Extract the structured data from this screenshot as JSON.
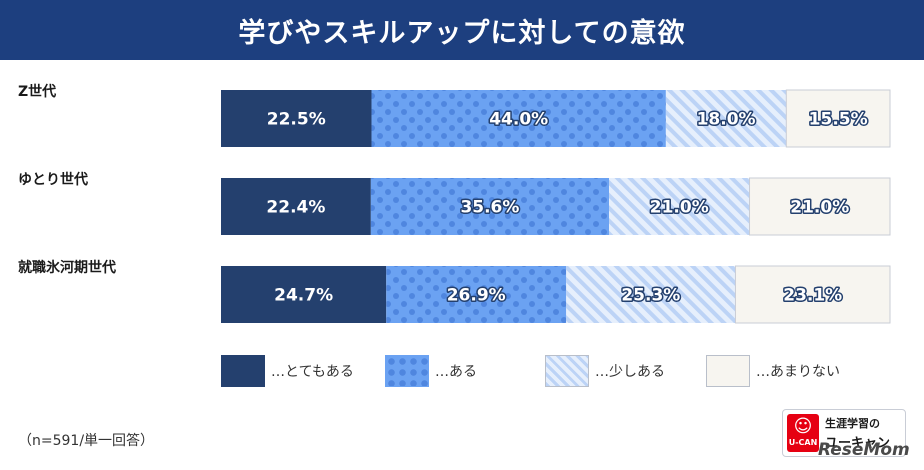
{
  "title": "学びやスキルアップに対しての意欲",
  "chart_data": {
    "type": "bar",
    "orientation": "horizontal",
    "stacked": true,
    "percent_stacked": true,
    "categories": [
      "Z世代",
      "ゆとり世代",
      "就職氷河期世代"
    ],
    "series": [
      {
        "name": "…とてもある",
        "values": [
          22.5,
          22.4,
          24.7
        ],
        "labels": [
          "22.5%",
          "22.4%",
          "24.7%"
        ]
      },
      {
        "name": "…ある",
        "values": [
          44.0,
          35.6,
          26.9
        ],
        "labels": [
          "44.0%",
          "35.6%",
          "26.9%"
        ]
      },
      {
        "name": "…少しある",
        "values": [
          18.0,
          21.0,
          25.3
        ],
        "labels": [
          "18.0%",
          "21.0%",
          "25.3%"
        ]
      },
      {
        "name": "…あまりない",
        "values": [
          15.5,
          21.0,
          23.1
        ],
        "labels": [
          "15.5%",
          "21.0%",
          "23.1%"
        ]
      }
    ],
    "xlim": [
      0,
      100
    ],
    "legend_placement": "bottom",
    "grid": false
  },
  "colors": {
    "title_bg": "#1d3f7f",
    "series": [
      "#24406e",
      "#6ba2f2",
      "#dde9fb",
      "#f7f5f0"
    ],
    "dot_color": "#4f86df",
    "stripe_color": "#b8d0f5",
    "label_dark_text": "#ffffff",
    "label_outline_text": "#24406e"
  },
  "note": "（n=591/単一回答）",
  "logo": {
    "mark_text": "U-CAN",
    "line1": "生涯学習の",
    "line2": "ユーキャン"
  },
  "watermark": "ReseMom"
}
